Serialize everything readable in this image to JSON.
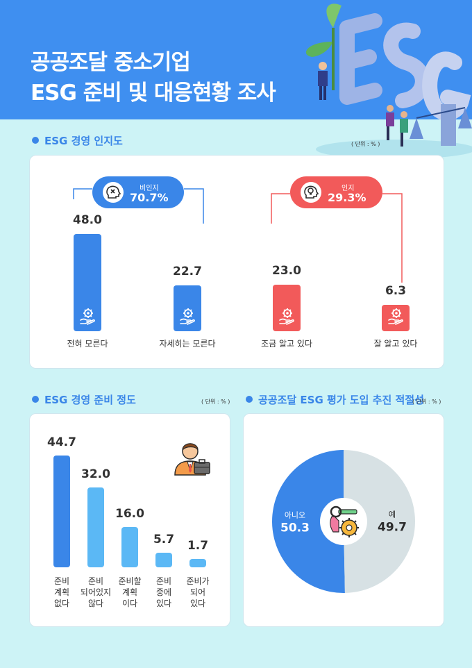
{
  "title_line1": "공공조달 중소기업",
  "title_line2": "ESG 준비 및 대응현황 조사",
  "colors": {
    "blue": "#3a86e8",
    "red": "#f25a5a",
    "lightblue": "#5bb8f5",
    "gray": "#d7e1e4",
    "header": "#3f8ff0"
  },
  "chart_data": [
    {
      "type": "bar",
      "title": "ESG 경영 인지도",
      "unit": "( 단위 : % )",
      "categories": [
        "전혀 모른다",
        "자세히는 모른다",
        "조금 알고 있다",
        "잘 알고 있다"
      ],
      "values": [
        48.0,
        22.7,
        23.0,
        6.3
      ],
      "value_labels": [
        "48.0",
        "22.7",
        "23.0",
        "6.3"
      ],
      "groups": [
        {
          "label": "비인지",
          "value": "70.7%",
          "icon": "brain-x-icon"
        },
        {
          "label": "인지",
          "value": "29.3%",
          "icon": "brain-bulb-icon"
        }
      ]
    },
    {
      "type": "bar",
      "title": "ESG 경영 준비 정도",
      "unit": "( 단위 : % )",
      "categories": [
        "준비\n계획\n없다",
        "준비\n되어있지\n않다",
        "준비할\n계획\n이다",
        "준비\n중에\n있다",
        "준비가\n되어\n있다"
      ],
      "values": [
        44.7,
        32.0,
        16.0,
        5.7,
        1.7
      ],
      "value_labels": [
        "44.7",
        "32.0",
        "16.0",
        "5.7",
        "1.7"
      ]
    },
    {
      "type": "pie",
      "title": "공공조달 ESG 평가 도입 추진 적절성",
      "unit": "( 단위 : % )",
      "categories": [
        "아니오",
        "예"
      ],
      "values": [
        50.3,
        49.7
      ],
      "value_labels": [
        "50.3",
        "49.7"
      ]
    }
  ]
}
